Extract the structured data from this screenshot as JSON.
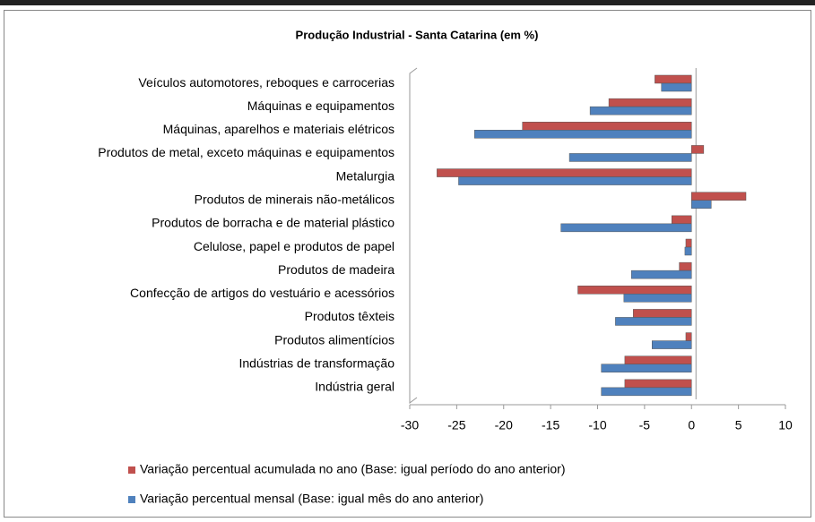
{
  "chart_data": {
    "type": "bar",
    "orientation": "horizontal",
    "title": "Produção Industrial - Santa Catarina (em %)",
    "categories": [
      "Veículos automotores, reboques e carrocerias",
      "Máquinas e equipamentos",
      "Máquinas, aparelhos e materiais elétricos",
      "Produtos de metal, exceto máquinas e equipamentos",
      "Metalurgia",
      "Produtos de minerais não-metálicos",
      "Produtos de borracha e de material plástico",
      "Celulose, papel e produtos de papel",
      "Produtos de madeira",
      "Confecção de artigos do vestuário e acessórios",
      "Produtos têxteis",
      "Produtos alimentícios",
      "Indústrias de transformação",
      "Indústria geral"
    ],
    "series": [
      {
        "name": "Variação percentual acumulada no ano (Base: igual período do ano anterior)",
        "color": "#c0504d",
        "values": [
          -3.9,
          -8.8,
          -18.0,
          1.3,
          -27.1,
          5.8,
          -2.1,
          -0.6,
          -1.3,
          -12.1,
          -6.2,
          -0.6,
          -7.1,
          -7.1
        ]
      },
      {
        "name": "Variação percentual mensal (Base: igual mês do ano anterior)",
        "color": "#4f81bd",
        "values": [
          -3.2,
          -10.8,
          -23.1,
          -13.0,
          -24.8,
          2.1,
          -13.9,
          -0.7,
          -6.4,
          -7.2,
          -8.1,
          -4.2,
          -9.6,
          -9.6
        ]
      }
    ],
    "xlim": [
      -30,
      10
    ],
    "xticks": [
      -30,
      -25,
      -20,
      -15,
      -10,
      -5,
      0,
      5,
      10
    ]
  }
}
